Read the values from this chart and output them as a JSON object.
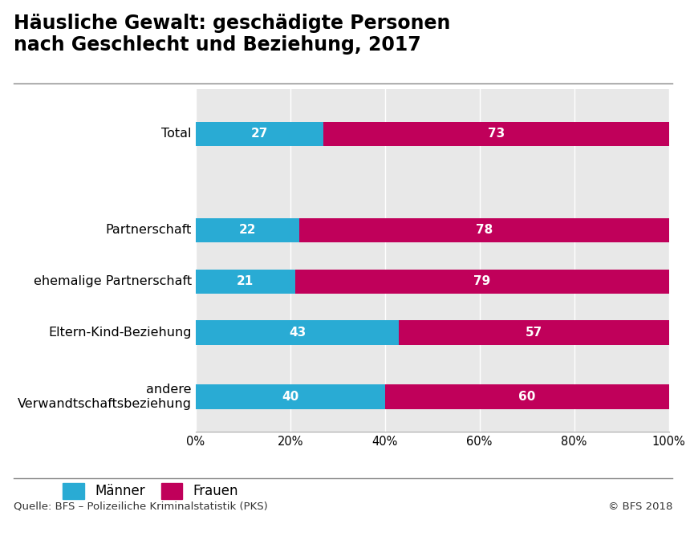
{
  "title_line1": "Häusliche Gewalt: geschädigte Personen",
  "title_line2": "nach Geschlecht und Beziehung, 2017",
  "categories": [
    "Total",
    "Partnerschaft",
    "ehemalige Partnerschaft",
    "Eltern-Kind-Beziehung",
    "andere\nVerwandtschaftsbeziehung"
  ],
  "maenner": [
    27,
    22,
    21,
    43,
    40
  ],
  "frauen": [
    73,
    78,
    79,
    57,
    60
  ],
  "color_maenner": "#29ABD4",
  "color_frauen": "#C0005A",
  "bar_height": 0.38,
  "xlim": [
    0,
    100
  ],
  "xticks": [
    0,
    20,
    40,
    60,
    80,
    100
  ],
  "xticklabels": [
    "0%",
    "20%",
    "40%",
    "60%",
    "80%",
    "100%"
  ],
  "legend_maenner": "Männer",
  "legend_frauen": "Frauen",
  "source_left": "Quelle: BFS – Polizeiliche Kriminalstatistik (PKS)",
  "source_right": "© BFS 2018",
  "plot_bg_color": "#E8E8E8",
  "title_fontsize": 17,
  "label_fontsize": 11.5,
  "tick_fontsize": 10.5,
  "bar_label_fontsize": 11,
  "legend_fontsize": 12,
  "source_fontsize": 9.5,
  "y_positions": [
    4.5,
    3.0,
    2.2,
    1.4,
    0.4
  ]
}
